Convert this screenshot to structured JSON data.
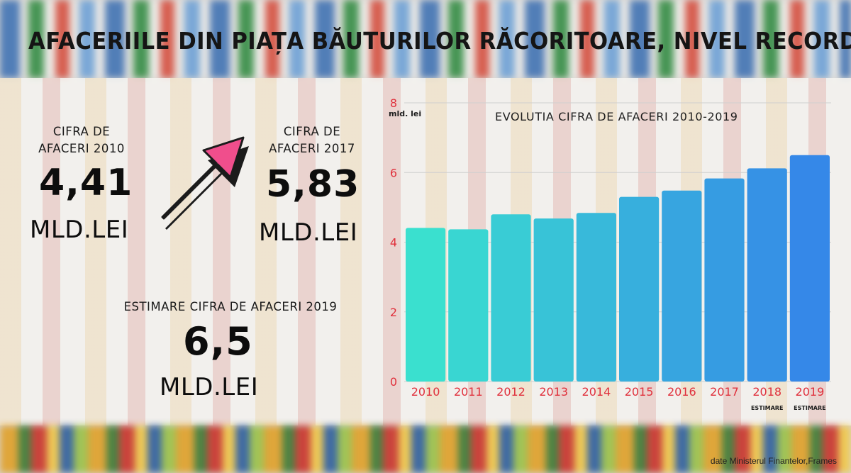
{
  "title": "AFACERIILE DIN PIAȚA BĂUTURILOR RĂCORITOARE, NIVEL RECORD",
  "stats": [
    {
      "label_line1": "CIFRA DE",
      "label_line2": "AFACERI 2010",
      "value": "4,41",
      "unit": "MLD.LEI"
    },
    {
      "label_line1": "CIFRA DE",
      "label_line2": "AFACERI 2017",
      "value": "5,83",
      "unit": "MLD.LEI"
    },
    {
      "label_line1": "ESTIMARE CIFRA DE AFACERI 2019",
      "value": "6,5",
      "unit": "MLD.LEI"
    }
  ],
  "arrow_icon": "arrow-up-right-icon",
  "colors": {
    "arrow": "#f04e8c",
    "axis_text": "#e0303c",
    "bar_start": "#3ae0cf",
    "bar_end": "#3588e8"
  },
  "chart_data": {
    "type": "bar",
    "title": "EVOLUTIA CIFRA DE AFACERI 2010-2019",
    "ylabel": "mld. lei",
    "xlabel": "",
    "categories": [
      "2010",
      "2011",
      "2012",
      "2013",
      "2014",
      "2015",
      "2016",
      "2017",
      "2018",
      "2019"
    ],
    "category_notes": [
      "",
      "",
      "",
      "",
      "",
      "",
      "",
      "",
      "ESTIMARE",
      "ESTIMARE"
    ],
    "values": [
      4.41,
      4.37,
      4.8,
      4.68,
      4.84,
      5.3,
      5.48,
      5.83,
      6.12,
      6.5
    ],
    "ylim": [
      0,
      8
    ],
    "yticks": [
      0,
      2,
      4,
      6,
      8
    ],
    "grid": true,
    "legend": "none"
  },
  "source": "date Ministerul Finantelor,Frames"
}
